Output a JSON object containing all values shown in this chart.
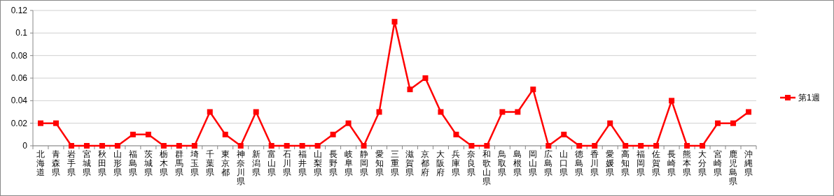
{
  "chart_data": {
    "type": "line",
    "categories": [
      "北海道",
      "青森県",
      "岩手県",
      "宮城県",
      "秋田県",
      "山形県",
      "福島県",
      "茨城県",
      "栃木県",
      "群馬県",
      "埼玉県",
      "千葉県",
      "東京都",
      "神奈川県",
      "新潟県",
      "富山県",
      "石川県",
      "福井県",
      "山梨県",
      "長野県",
      "岐阜県",
      "静岡県",
      "愛知県",
      "三重県",
      "滋賀県",
      "京都府",
      "大阪府",
      "兵庫県",
      "奈良県",
      "和歌山県",
      "鳥取県",
      "島根県",
      "岡山県",
      "広島県",
      "山口県",
      "徳島県",
      "香川県",
      "愛媛県",
      "高知県",
      "福岡県",
      "佐賀県",
      "長崎県",
      "熊本県",
      "大分県",
      "宮崎県",
      "鹿児島県",
      "沖縄県"
    ],
    "series": [
      {
        "name": "第1週",
        "color": "#ff0000",
        "values": [
          0.02,
          0.02,
          0,
          0,
          0,
          0,
          0.01,
          0.01,
          0,
          0,
          0,
          0.03,
          0.01,
          0,
          0.03,
          0,
          0,
          0,
          0,
          0.01,
          0.02,
          0,
          0.03,
          0.11,
          0.05,
          0.06,
          0.03,
          0.01,
          0,
          0,
          0.03,
          0.03,
          0.05,
          0,
          0.01,
          0,
          0,
          0.02,
          0,
          0,
          0,
          0.04,
          0,
          0,
          0.02,
          0.02,
          0.03
        ]
      }
    ],
    "ylim": [
      0,
      0.12
    ],
    "yticks": [
      0,
      0.02,
      0.04,
      0.06,
      0.08,
      0.1,
      0.12
    ],
    "grid": "y",
    "legend": "right",
    "marker": "square",
    "line_style": "solid"
  }
}
